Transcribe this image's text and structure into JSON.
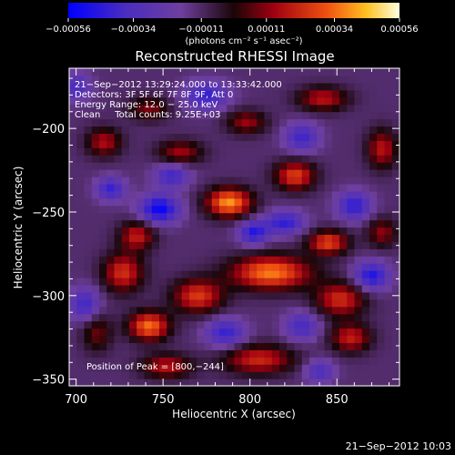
{
  "chart_data": {
    "type": "heatmap",
    "title": "Reconstructed RHESSI Image",
    "xlabel": "Heliocentric X (arcsec)",
    "ylabel": "Heliocentric Y (arcsec)",
    "xlim": [
      696,
      886
    ],
    "ylim": [
      -354,
      -164
    ],
    "x_ticks": [
      700,
      750,
      800,
      850
    ],
    "x_tick_labels": [
      "700",
      "750",
      "800",
      "850"
    ],
    "y_ticks": [
      -200,
      -250,
      -300,
      -350
    ],
    "y_tick_labels": [
      "−200",
      "−250",
      "−300",
      "−350"
    ],
    "colorbar": {
      "range": [
        -0.00056,
        0.00056
      ],
      "ticks": [
        -0.00056,
        -0.00034,
        -0.00011,
        0.00011,
        0.00034,
        0.00056
      ],
      "tick_labels": [
        "−0.00056",
        "−0.00034",
        "−0.00011",
        "0.00011",
        "0.00034",
        "0.00056"
      ],
      "unit_label": "(photons cm⁻² s⁻¹ asec⁻²)"
    },
    "annotations": [
      "21−Sep−2012 13:29:24.000 to 13:33:42.000",
      "Detectors: 3F 5F 6F 7F 8F 9F, Att 0",
      "Energy Range: 12.0 − 25.0 keV",
      "Clean     Total counts: 9.25E+03"
    ],
    "peak_label": "Position of Peak = [800,−244]",
    "peak": [
      800,
      -244
    ],
    "blobs": [
      {
        "x": 788,
        "y": -244,
        "sx": 9,
        "sy": 6,
        "a": 0.00052
      },
      {
        "x": 812,
        "y": -286,
        "sx": 16,
        "sy": 7,
        "a": 0.00049
      },
      {
        "x": 742,
        "y": -318,
        "sx": 8,
        "sy": 6,
        "a": 0.00047
      },
      {
        "x": 770,
        "y": -300,
        "sx": 10,
        "sy": 7,
        "a": 0.00038
      },
      {
        "x": 727,
        "y": -286,
        "sx": 8,
        "sy": 8,
        "a": 0.00036
      },
      {
        "x": 735,
        "y": -264,
        "sx": 7,
        "sy": 6,
        "a": 0.00032
      },
      {
        "x": 826,
        "y": -228,
        "sx": 8,
        "sy": 6,
        "a": 0.00039
      },
      {
        "x": 845,
        "y": -268,
        "sx": 8,
        "sy": 5,
        "a": 0.0004
      },
      {
        "x": 852,
        "y": -302,
        "sx": 10,
        "sy": 7,
        "a": 0.00035
      },
      {
        "x": 805,
        "y": -338,
        "sx": 14,
        "sy": 6,
        "a": 0.00034
      },
      {
        "x": 752,
        "y": -342,
        "sx": 10,
        "sy": 5,
        "a": 0.0003
      },
      {
        "x": 858,
        "y": -325,
        "sx": 8,
        "sy": 6,
        "a": 0.00032
      },
      {
        "x": 760,
        "y": -214,
        "sx": 9,
        "sy": 5,
        "a": 0.00026
      },
      {
        "x": 716,
        "y": -208,
        "sx": 7,
        "sy": 6,
        "a": 0.00028
      },
      {
        "x": 742,
        "y": -188,
        "sx": 8,
        "sy": 5,
        "a": 0.00022
      },
      {
        "x": 798,
        "y": -196,
        "sx": 8,
        "sy": 5,
        "a": 0.00025
      },
      {
        "x": 842,
        "y": -182,
        "sx": 10,
        "sy": 5,
        "a": 0.0003
      },
      {
        "x": 876,
        "y": -212,
        "sx": 6,
        "sy": 8,
        "a": 0.0003
      },
      {
        "x": 712,
        "y": -322,
        "sx": 6,
        "sy": 8,
        "a": 0.0002
      },
      {
        "x": 876,
        "y": -262,
        "sx": 6,
        "sy": 6,
        "a": 0.00024
      },
      {
        "x": 720,
        "y": -236,
        "sx": 6,
        "sy": 5,
        "a": -0.0003
      },
      {
        "x": 748,
        "y": -248,
        "sx": 8,
        "sy": 6,
        "a": -0.00042
      },
      {
        "x": 755,
        "y": -228,
        "sx": 7,
        "sy": 5,
        "a": -0.00028
      },
      {
        "x": 820,
        "y": -256,
        "sx": 8,
        "sy": 5,
        "a": -0.00032
      },
      {
        "x": 802,
        "y": -262,
        "sx": 6,
        "sy": 5,
        "a": -0.00034
      },
      {
        "x": 860,
        "y": -246,
        "sx": 7,
        "sy": 6,
        "a": -0.00032
      },
      {
        "x": 870,
        "y": -288,
        "sx": 7,
        "sy": 6,
        "a": -0.00036
      },
      {
        "x": 705,
        "y": -305,
        "sx": 6,
        "sy": 7,
        "a": -0.00028
      },
      {
        "x": 786,
        "y": -322,
        "sx": 8,
        "sy": 6,
        "a": -0.0003
      },
      {
        "x": 830,
        "y": -318,
        "sx": 7,
        "sy": 6,
        "a": -0.00026
      },
      {
        "x": 775,
        "y": -180,
        "sx": 9,
        "sy": 6,
        "a": -0.0003
      },
      {
        "x": 830,
        "y": -205,
        "sx": 7,
        "sy": 6,
        "a": -0.00028
      },
      {
        "x": 700,
        "y": -175,
        "sx": 6,
        "sy": 6,
        "a": -0.00024
      },
      {
        "x": 840,
        "y": -345,
        "sx": 6,
        "sy": 5,
        "a": -0.00024
      }
    ]
  },
  "footer_timestamp": "21−Sep−2012 10:03"
}
